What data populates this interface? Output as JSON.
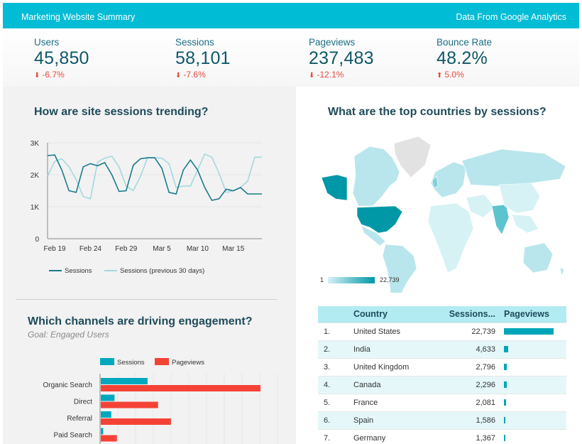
{
  "header": {
    "title": "Marketing Website Summary",
    "source": "Data From Google Analytics"
  },
  "kpis": [
    {
      "label": "Users",
      "value": "45,850",
      "change": "-6.7%",
      "direction": "down"
    },
    {
      "label": "Sessions",
      "value": "58,101",
      "change": "-7.6%",
      "direction": "down"
    },
    {
      "label": "Pageviews",
      "value": "237,483",
      "change": "-12.1%",
      "direction": "down"
    },
    {
      "label": "Bounce Rate",
      "value": "48.2%",
      "change": "5.0%",
      "direction": "up"
    }
  ],
  "trend": {
    "title": "How are site sessions trending?",
    "chart_data": {
      "type": "line",
      "x": [
        "Feb 18",
        "Feb 19",
        "Feb 20",
        "Feb 21",
        "Feb 22",
        "Feb 23",
        "Feb 24",
        "Feb 25",
        "Feb 26",
        "Feb 27",
        "Feb 28",
        "Feb 29",
        "Mar 1",
        "Mar 2",
        "Mar 3",
        "Mar 4",
        "Mar 5",
        "Mar 6",
        "Mar 7",
        "Mar 8",
        "Mar 9",
        "Mar 10",
        "Mar 11",
        "Mar 12",
        "Mar 13",
        "Mar 14",
        "Mar 15",
        "Mar 16",
        "Mar 17",
        "Mar 18",
        "Mar 19"
      ],
      "x_tick_labels": [
        "Feb 19",
        "Feb 24",
        "Feb 29",
        "Mar 5",
        "Mar 10",
        "Mar 15"
      ],
      "y_tick_labels": [
        "0",
        "1K",
        "2K",
        "3K"
      ],
      "ylim": [
        0,
        3000
      ],
      "grid": "horizontal",
      "legend_position": "bottom",
      "series": [
        {
          "name": "Sessions",
          "color": "#1b7a8c",
          "values": [
            2600,
            2620,
            2150,
            1500,
            1450,
            2250,
            2350,
            2280,
            2380,
            2000,
            1480,
            1500,
            2300,
            2500,
            2530,
            2530,
            2200,
            1450,
            1400,
            2150,
            2460,
            2150,
            1600,
            1200,
            1250,
            1550,
            1500,
            1600,
            1400,
            1400,
            1400
          ]
        },
        {
          "name": "Sessions (previous 30 days)",
          "color": "#a4d8de",
          "values": [
            1950,
            2420,
            2500,
            2250,
            1850,
            1320,
            1250,
            2400,
            2520,
            2580,
            2250,
            1650,
            1500,
            1950,
            2530,
            2530,
            2520,
            2350,
            1600,
            1650,
            1650,
            2150,
            2650,
            2550,
            2050,
            1450,
            1500,
            1600,
            1800,
            2550,
            2550
          ]
        }
      ]
    }
  },
  "channels": {
    "title": "Which channels are driving engagement?",
    "subtitle": "Goal: Engaged Users",
    "chart_data": {
      "type": "bar",
      "orientation": "horizontal",
      "categories": [
        "Organic Search",
        "Direct",
        "Referral",
        "Paid Search"
      ],
      "legend_position": "top",
      "series": [
        {
          "name": "Sessions",
          "color": "#00a9bd",
          "values": [
            29000,
            8500,
            6500,
            1500
          ]
        },
        {
          "name": "Pageviews",
          "color": "#f44336",
          "values": [
            99000,
            35500,
            43500,
            10000
          ]
        }
      ]
    }
  },
  "map": {
    "title": "What are the top countries by sessions?",
    "legend_min": "1",
    "legend_max": "22,739",
    "colors": {
      "low": "#d6f2f5",
      "high": "#0097a7",
      "no_data": "#e2e2e2"
    }
  },
  "countries_table": {
    "headers": [
      "Country",
      "Sessions...",
      "Pageviews"
    ],
    "rows": [
      {
        "idx": "1.",
        "country": "United States",
        "sessions": "22,739",
        "pageviews_fraction": 1.0
      },
      {
        "idx": "2.",
        "country": "India",
        "sessions": "4,633",
        "pageviews_fraction": 0.08
      },
      {
        "idx": "3.",
        "country": "United Kingdom",
        "sessions": "2,796",
        "pageviews_fraction": 0.05
      },
      {
        "idx": "4.",
        "country": "Canada",
        "sessions": "2,296",
        "pageviews_fraction": 0.05
      },
      {
        "idx": "5.",
        "country": "France",
        "sessions": "2,081",
        "pageviews_fraction": 0.04
      },
      {
        "idx": "6.",
        "country": "Spain",
        "sessions": "1,586",
        "pageviews_fraction": 0.02
      },
      {
        "idx": "7.",
        "country": "Germany",
        "sessions": "1,367",
        "pageviews_fraction": 0.02
      }
    ]
  }
}
